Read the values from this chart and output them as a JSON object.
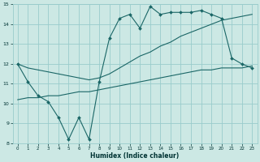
{
  "xlabel": "Humidex (Indice chaleur)",
  "xlim": [
    -0.5,
    23.5
  ],
  "ylim": [
    8,
    15
  ],
  "xticks": [
    0,
    1,
    2,
    3,
    4,
    5,
    6,
    7,
    8,
    9,
    10,
    11,
    12,
    13,
    14,
    15,
    16,
    17,
    18,
    19,
    20,
    21,
    22,
    23
  ],
  "yticks": [
    8,
    9,
    10,
    11,
    12,
    13,
    14,
    15
  ],
  "background_color": "#cce8e4",
  "grid_color": "#99cccc",
  "line_color": "#1a6666",
  "line1_x": [
    0,
    1,
    2,
    3,
    4,
    5,
    6,
    7,
    8,
    9,
    10,
    11,
    12,
    13,
    14,
    15,
    16,
    17,
    18,
    19,
    20,
    21,
    22,
    23
  ],
  "line1_y": [
    12.0,
    11.1,
    10.4,
    10.1,
    9.3,
    8.2,
    9.3,
    8.2,
    11.1,
    13.3,
    14.3,
    14.5,
    13.8,
    14.9,
    14.5,
    14.6,
    14.6,
    14.6,
    14.7,
    14.5,
    14.3,
    12.3,
    12.0,
    11.8
  ],
  "line2_x": [
    0,
    1,
    2,
    3,
    4,
    5,
    6,
    7,
    8,
    9,
    10,
    11,
    12,
    13,
    14,
    15,
    16,
    17,
    18,
    19,
    20,
    21,
    22,
    23
  ],
  "line2_y": [
    12.0,
    11.8,
    11.7,
    11.6,
    11.5,
    11.4,
    11.3,
    11.2,
    11.3,
    11.5,
    11.8,
    12.1,
    12.4,
    12.6,
    12.9,
    13.1,
    13.4,
    13.6,
    13.8,
    14.0,
    14.2,
    14.3,
    14.4,
    14.5
  ],
  "line3_x": [
    0,
    1,
    2,
    3,
    4,
    5,
    6,
    7,
    8,
    9,
    10,
    11,
    12,
    13,
    14,
    15,
    16,
    17,
    18,
    19,
    20,
    21,
    22,
    23
  ],
  "line3_y": [
    10.2,
    10.3,
    10.3,
    10.4,
    10.4,
    10.5,
    10.6,
    10.6,
    10.7,
    10.8,
    10.9,
    11.0,
    11.1,
    11.2,
    11.3,
    11.4,
    11.5,
    11.6,
    11.7,
    11.7,
    11.8,
    11.8,
    11.8,
    11.9
  ]
}
